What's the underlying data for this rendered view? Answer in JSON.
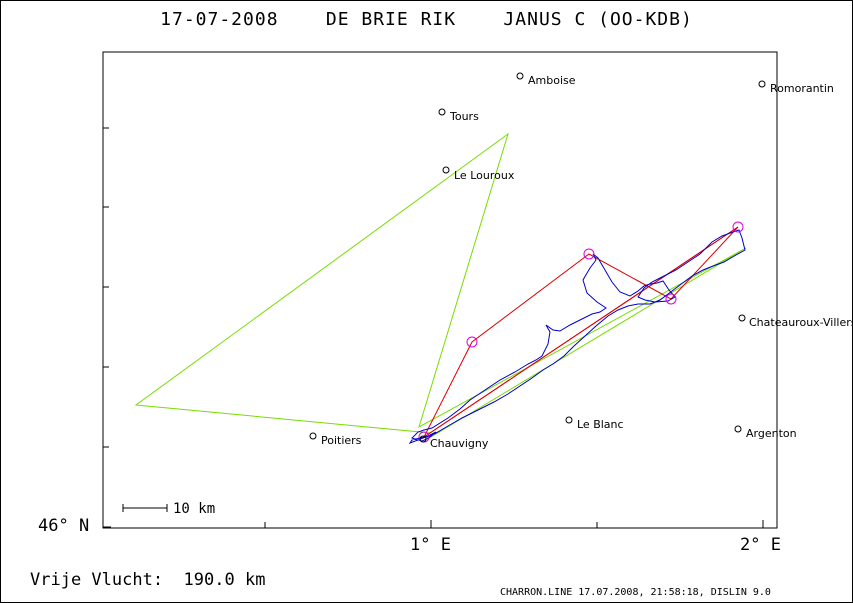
{
  "title": "17-07-2008    DE BRIE RIK    JANUS C (OO-KDB)",
  "axes": {
    "y_label": "46° N",
    "x_labels": [
      "1° E",
      "2° E"
    ]
  },
  "scale_bar": {
    "label": "10 km"
  },
  "places": [
    {
      "name": "Amboise"
    },
    {
      "name": "Romorantin"
    },
    {
      "name": "Tours"
    },
    {
      "name": "Le Louroux"
    },
    {
      "name": "Chateauroux-Villers"
    },
    {
      "name": "Poitiers"
    },
    {
      "name": "Chauvigny"
    },
    {
      "name": "Le Blanc"
    },
    {
      "name": "Argenton"
    }
  ],
  "free_flight": {
    "label": "Vrije Vlucht:",
    "value": "190.0 km"
  },
  "footer": "CHARRON.LINE 17.07.2008, 21:58:18, DISLIN 9.0",
  "colors": {
    "track": "#0000cc",
    "task": "#dd0000",
    "alternative": "#77dd00",
    "turnpoint": "#dd00dd"
  }
}
